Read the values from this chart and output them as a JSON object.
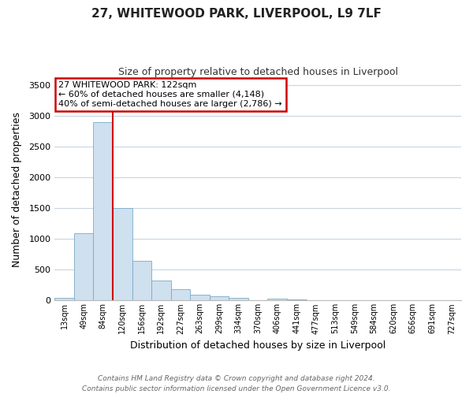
{
  "title": "27, WHITEWOOD PARK, LIVERPOOL, L9 7LF",
  "subtitle": "Size of property relative to detached houses in Liverpool",
  "xlabel": "Distribution of detached houses by size in Liverpool",
  "ylabel": "Number of detached properties",
  "bar_labels": [
    "13sqm",
    "49sqm",
    "84sqm",
    "120sqm",
    "156sqm",
    "192sqm",
    "227sqm",
    "263sqm",
    "299sqm",
    "334sqm",
    "370sqm",
    "406sqm",
    "441sqm",
    "477sqm",
    "513sqm",
    "549sqm",
    "584sqm",
    "620sqm",
    "656sqm",
    "691sqm",
    "727sqm"
  ],
  "bar_values": [
    45,
    1100,
    2900,
    1500,
    640,
    330,
    190,
    100,
    65,
    45,
    0,
    30,
    20,
    0,
    0,
    0,
    0,
    0,
    0,
    0,
    0
  ],
  "bar_color": "#cfe0ef",
  "bar_edge_color": "#7aaac8",
  "vline_color": "#cc0000",
  "vline_bar_index": 3,
  "ylim": [
    0,
    3600
  ],
  "yticks": [
    0,
    500,
    1000,
    1500,
    2000,
    2500,
    3000,
    3500
  ],
  "annotation_title": "27 WHITEWOOD PARK: 122sqm",
  "annotation_line1": "← 60% of detached houses are smaller (4,148)",
  "annotation_line2": "40% of semi-detached houses are larger (2,786) →",
  "footer_line1": "Contains HM Land Registry data © Crown copyright and database right 2024.",
  "footer_line2": "Contains public sector information licensed under the Open Government Licence v3.0.",
  "bg_color": "#ffffff",
  "grid_color": "#c8d4e0",
  "annotation_box_color": "#ffffff",
  "annotation_box_edge": "#cc0000",
  "title_fontsize": 11,
  "subtitle_fontsize": 9
}
